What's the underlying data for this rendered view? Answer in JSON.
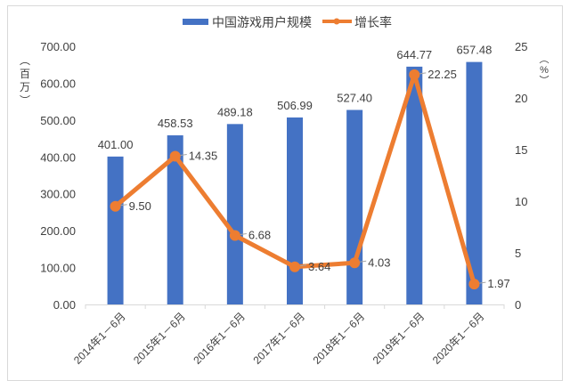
{
  "legend": {
    "bar_label": "中国游戏用户规模",
    "line_label": "增长率"
  },
  "axes": {
    "left_unit": "（百万）",
    "left_unit_chars": [
      "︵",
      "百",
      "万",
      "︶"
    ],
    "right_unit_chars": [
      "︵",
      "%",
      "︶"
    ],
    "left_ticks": [
      "0.00",
      "100.00",
      "200.00",
      "300.00",
      "400.00",
      "500.00",
      "600.00",
      "700.00"
    ],
    "right_ticks": [
      "0",
      "5",
      "10",
      "15",
      "20",
      "25"
    ]
  },
  "colors": {
    "bar": "#4472C4",
    "line": "#ED7D31",
    "text": "#404040",
    "axis": "#d9d9d9"
  },
  "chart_data": {
    "type": "bar+line",
    "title": "",
    "categories": [
      "2014年1－6月",
      "2015年1－6月",
      "2016年1－6月",
      "2017年1－6月",
      "2018年1－6月",
      "2019年1－6月",
      "2020年1－6月"
    ],
    "series": [
      {
        "name": "中国游戏用户规模",
        "type": "bar",
        "axis": "left",
        "values": [
          401.0,
          458.53,
          489.18,
          506.99,
          527.4,
          644.77,
          657.48
        ],
        "labels": [
          "401.00",
          "458.53",
          "489.18",
          "506.99",
          "527.40",
          "644.77",
          "657.48"
        ]
      },
      {
        "name": "增长率",
        "type": "line",
        "axis": "right",
        "values": [
          9.5,
          14.35,
          6.68,
          3.64,
          4.03,
          22.25,
          1.97
        ],
        "labels": [
          "9.50",
          "14.35",
          "6.68",
          "3.64",
          "4.03",
          "22.25",
          "1.97"
        ]
      }
    ],
    "ylabel": "百万",
    "y2label": "%",
    "ylim": [
      0,
      700
    ],
    "y2lim": [
      0,
      25
    ],
    "grid": false,
    "legend_position": "top"
  }
}
